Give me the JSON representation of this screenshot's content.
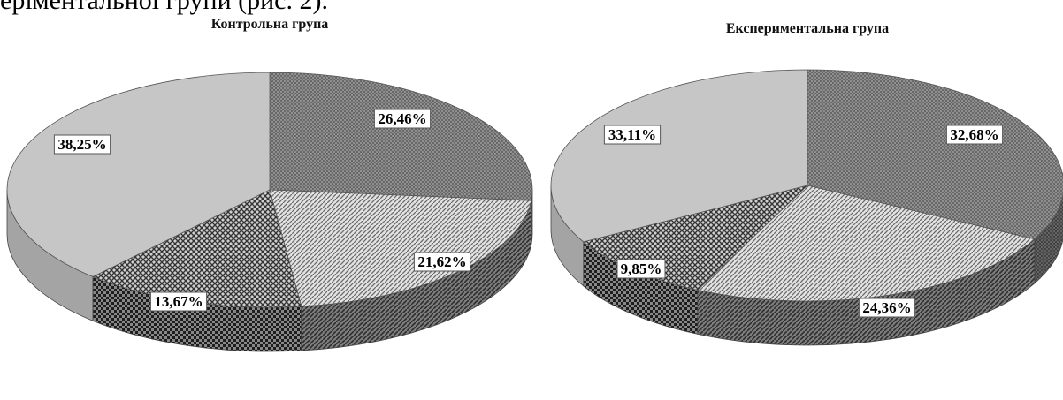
{
  "header_fragment": "ерiментальної групи (рис. 2).",
  "chart_data": [
    {
      "type": "pie",
      "title": "Контрольна група",
      "slices": [
        {
          "label": "26,46%",
          "value": 26.46,
          "pattern": "p-cross"
        },
        {
          "label": "21,62%",
          "value": 21.62,
          "pattern": "p-diag"
        },
        {
          "label": "13,67%",
          "value": 13.67,
          "pattern": "p-check"
        },
        {
          "label": "38,25%",
          "value": 38.25,
          "pattern": "p-solid"
        }
      ]
    },
    {
      "type": "pie",
      "title": "Експериментальна група",
      "slices": [
        {
          "label": "32,68%",
          "value": 32.68,
          "pattern": "p-cross"
        },
        {
          "label": "24,36%",
          "value": 24.36,
          "pattern": "p-diag"
        },
        {
          "label": "9,85%",
          "value": 9.85,
          "pattern": "p-check"
        },
        {
          "label": "33,11%",
          "value": 33.11,
          "pattern": "p-solid"
        }
      ]
    }
  ]
}
